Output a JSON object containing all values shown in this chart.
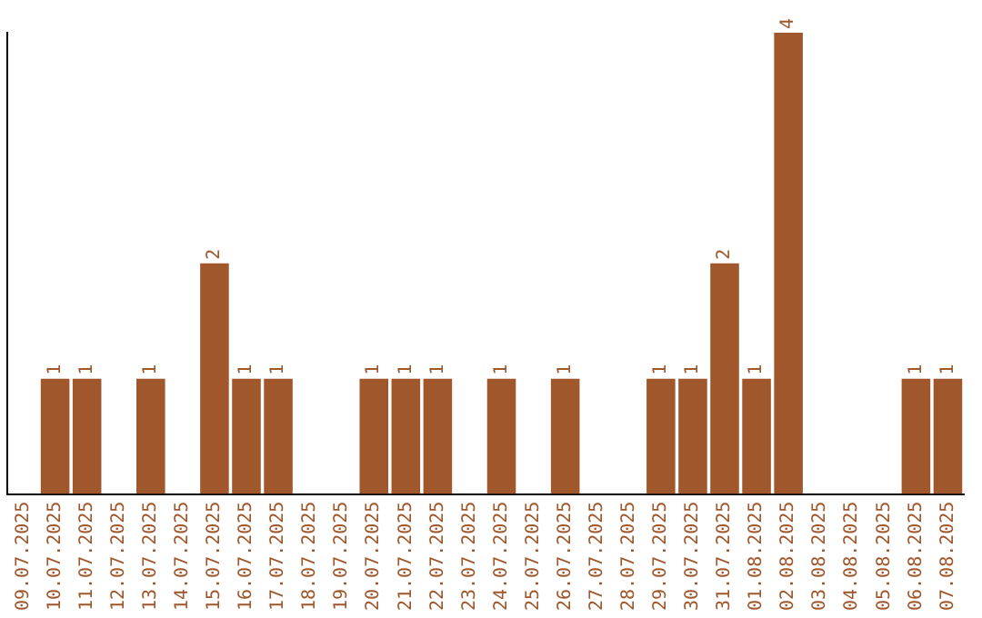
{
  "chart_data": {
    "type": "bar",
    "categories": [
      "09.07.2025",
      "10.07.2025",
      "11.07.2025",
      "12.07.2025",
      "13.07.2025",
      "14.07.2025",
      "15.07.2025",
      "16.07.2025",
      "17.07.2025",
      "18.07.2025",
      "19.07.2025",
      "20.07.2025",
      "21.07.2025",
      "22.07.2025",
      "23.07.2025",
      "24.07.2025",
      "25.07.2025",
      "26.07.2025",
      "27.07.2025",
      "28.07.2025",
      "29.07.2025",
      "30.07.2025",
      "31.07.2025",
      "01.08.2025",
      "02.08.2025",
      "03.08.2025",
      "04.08.2025",
      "05.08.2025",
      "06.08.2025",
      "07.08.2025"
    ],
    "values": [
      0,
      1,
      1,
      0,
      1,
      0,
      2,
      1,
      1,
      0,
      0,
      1,
      1,
      1,
      0,
      1,
      0,
      1,
      0,
      0,
      1,
      1,
      2,
      1,
      4,
      0,
      0,
      0,
      1,
      1
    ],
    "value_labels": [
      null,
      "1",
      "1",
      null,
      "1",
      null,
      "2",
      "1",
      "1",
      null,
      null,
      "1",
      "1",
      "1",
      null,
      "1",
      null,
      "1",
      null,
      null,
      "1",
      "1",
      "2",
      "1",
      "4",
      null,
      null,
      null,
      "1",
      "1"
    ],
    "color": "#a0572b",
    "ylim": [
      0,
      4
    ],
    "tick_labels": "x",
    "grid": false,
    "legend": false
  }
}
